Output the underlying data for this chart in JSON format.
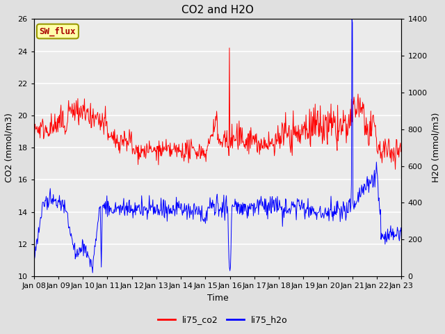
{
  "title": "CO2 and H2O",
  "xlabel": "Time",
  "ylabel_left": "CO2 (mmol/m3)",
  "ylabel_right": "H2O (mmol/m3)",
  "ylim_left": [
    10,
    26
  ],
  "ylim_right": [
    0,
    1400
  ],
  "yticks_left": [
    10,
    12,
    14,
    16,
    18,
    20,
    22,
    24,
    26
  ],
  "yticks_right": [
    0,
    200,
    400,
    600,
    800,
    1000,
    1200,
    1400
  ],
  "legend_labels": [
    "li75_co2",
    "li75_h2o"
  ],
  "co2_color": "red",
  "h2o_color": "blue",
  "annotation_text": "SW_flux",
  "annotation_bg": "#ffffaa",
  "annotation_border": "#999900",
  "annotation_text_color": "#aa0000",
  "background_color": "#e0e0e0",
  "plot_bg_color": "#ebebeb",
  "grid_color": "white",
  "title_fontsize": 11,
  "axis_fontsize": 9,
  "tick_fontsize": 8,
  "legend_fontsize": 9,
  "figsize": [
    6.4,
    4.8
  ],
  "dpi": 100
}
